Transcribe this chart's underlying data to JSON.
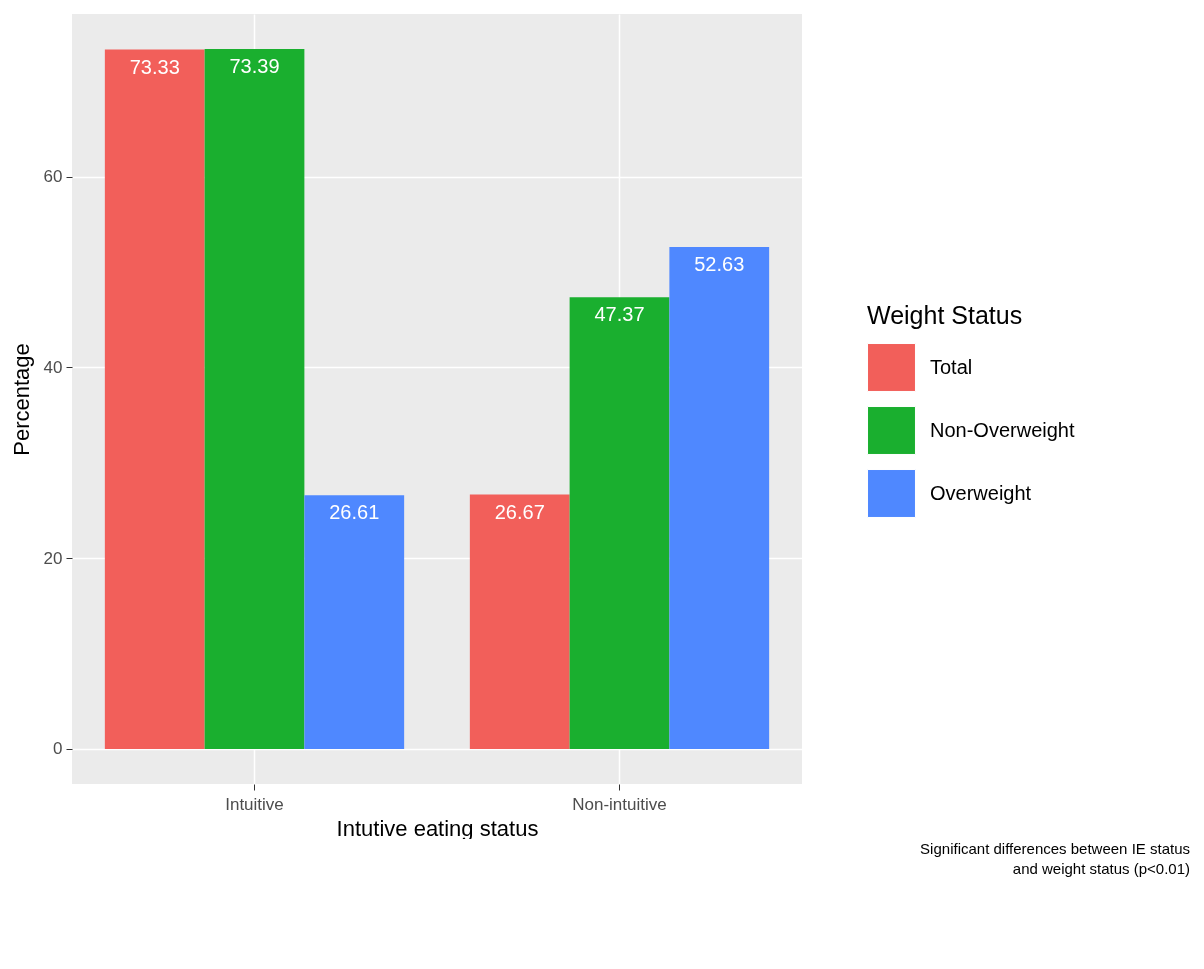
{
  "chart_data": {
    "type": "bar",
    "xlabel": "Intutive eating status",
    "ylabel": "Percentage",
    "legend_title": "Weight Status",
    "categories": [
      "Intuitive",
      "Non-intuitive"
    ],
    "series": [
      {
        "name": "Total",
        "color": "#f25f5a",
        "values": [
          73.33,
          26.67
        ]
      },
      {
        "name": "Non-Overweight",
        "color": "#1aaf2f",
        "values": [
          73.39,
          47.37
        ]
      },
      {
        "name": "Overweight",
        "color": "#4f88ff",
        "values": [
          26.61,
          52.63
        ]
      }
    ],
    "ylim": [
      -3.67,
      77.06
    ],
    "yticks": [
      0,
      20,
      40,
      60
    ],
    "grid": true,
    "legend": "right",
    "data_labels": true,
    "annotations": [
      "Significant differences between IE status",
      "and weight status (p<0.01)"
    ]
  }
}
